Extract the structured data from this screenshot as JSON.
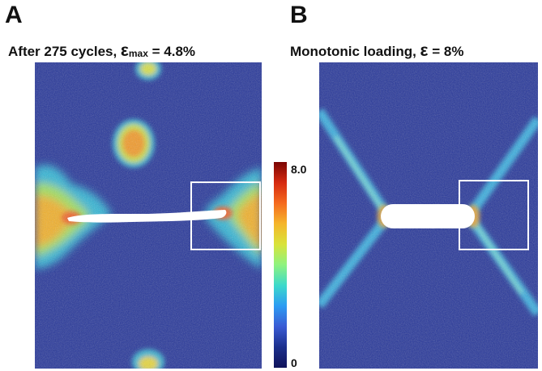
{
  "panel_a": {
    "letter": "A",
    "title_prefix": "After 275 cycles, ",
    "title_symbol": "ε",
    "title_subscript": "max",
    "title_suffix": " = 4.8%"
  },
  "panel_b": {
    "letter": "B",
    "title_prefix": "Monotonic loading, ",
    "title_symbol": "ε",
    "title_suffix": " = 8%"
  },
  "colorbar": {
    "max_label": "8.0",
    "min_label": "0",
    "colors": [
      "#7a0403",
      "#d62a10",
      "#f56a1e",
      "#f5b52a",
      "#d9e33a",
      "#8ef37f",
      "#3cd9cb",
      "#2c9bf3",
      "#3a5bd4",
      "#1b2f8c",
      "#10135a"
    ]
  },
  "map_colors": {
    "background": "#26369a",
    "hole": "#ffffff",
    "box_outline": "#ffffff"
  }
}
